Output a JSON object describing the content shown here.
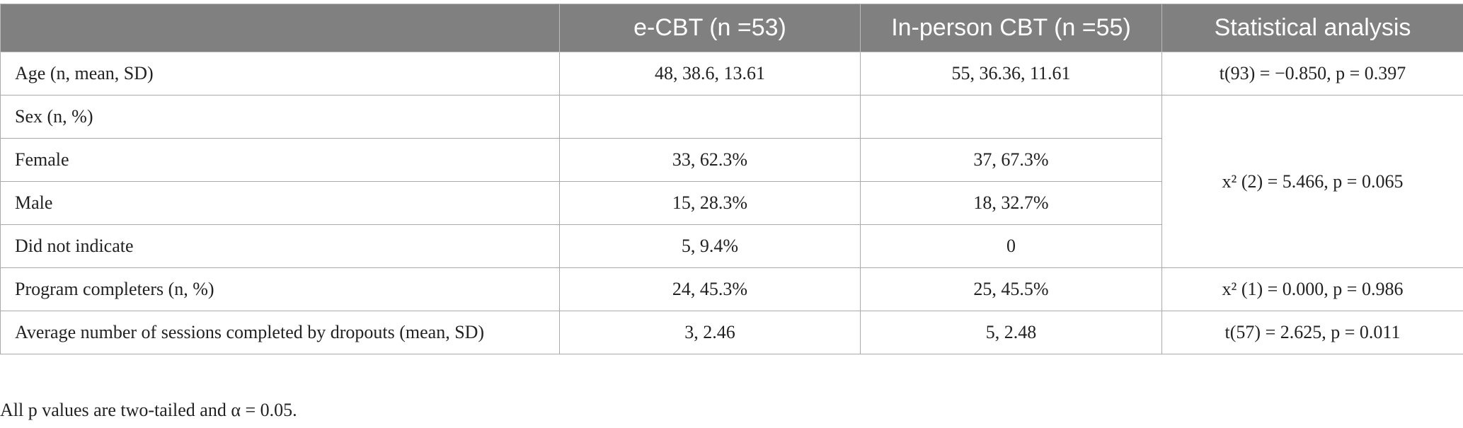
{
  "table": {
    "header": [
      "e-CBT (n =53)",
      "In-person CBT (n =55)",
      "Statistical analysis"
    ],
    "rows": [
      {
        "label": "Age (n, mean, SD)",
        "ecbt": "48, 38.6, 13.61",
        "inperson": "55, 36.36, 11.61",
        "stat": "t(93) = −0.850, p = 0.397"
      },
      {
        "label": "Sex (n, %)",
        "stat": "x² (2) = 5.466, p = 0.065"
      },
      {
        "label": "Female",
        "ecbt": "33, 62.3%",
        "inperson": "37, 67.3%"
      },
      {
        "label": "Male",
        "ecbt": "15, 28.3%",
        "inperson": "18, 32.7%"
      },
      {
        "label": "Did not indicate",
        "ecbt": "5, 9.4%",
        "inperson": "0"
      },
      {
        "label": "Program completers (n, %)",
        "ecbt": "24, 45.3%",
        "inperson": "25, 45.5%",
        "stat": "x² (1) = 0.000, p = 0.986"
      },
      {
        "label": "Average number of sessions completed by dropouts (mean, SD)",
        "ecbt": "3, 2.46",
        "inperson": "5, 2.48",
        "stat": "t(57) = 2.625, p = 0.011"
      }
    ]
  },
  "footnote": "All p values are two-tailed and α = 0.05."
}
